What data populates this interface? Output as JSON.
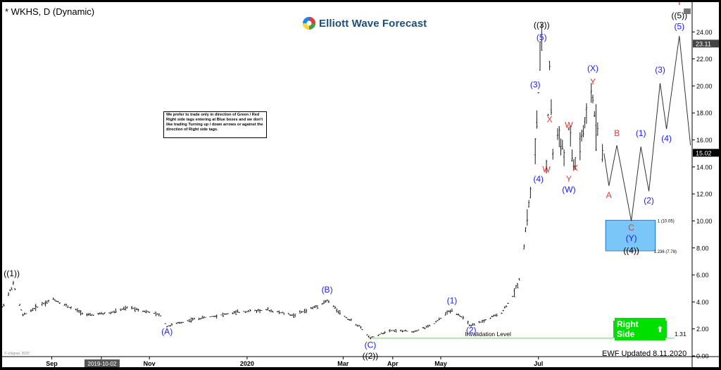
{
  "header": {
    "title": "* WKHS, D (Dynamic)"
  },
  "logo": {
    "text": "Elliott Wave Forecast",
    "colors": [
      "#e53935",
      "#1e88e5",
      "#43a047",
      "#fdd835"
    ]
  },
  "note": {
    "text": "We prefer to trade only in direction of Green / Red Right side tags entering at Blue boxes and we don't like trading Turning up / down arrows or against the direction of Right side tags."
  },
  "right_side": {
    "label": "Right Side",
    "icon": "up-arrow-icon",
    "color": "#00e000"
  },
  "footer": {
    "updated": "EWF Updated 8.11.2020",
    "copyright": "© eSignal, 2020"
  },
  "chart_data": {
    "type": "ohlc-bar",
    "symbol": "WKHS",
    "interval": "D",
    "ylim": [
      0,
      26
    ],
    "y_ticks": [
      "0.00",
      "2.00",
      "4.00",
      "6.00",
      "8.00",
      "10.00",
      "12.00",
      "14.00",
      "16.00",
      "18.00",
      "20.00",
      "22.00",
      "24.00"
    ],
    "x_labels": [
      {
        "label": "Sep",
        "date": "2019-09-01"
      },
      {
        "label": "2019-10-02",
        "date": "2019-10-02",
        "highlight": true
      },
      {
        "label": "Nov",
        "date": "2019-11-01"
      },
      {
        "label": "2020",
        "date": "2020-01-01"
      },
      {
        "label": "Mar",
        "date": "2020-03-01"
      },
      {
        "label": "Apr",
        "date": "2020-04-01"
      },
      {
        "label": "May",
        "date": "2020-05-01"
      },
      {
        "label": "Jul",
        "date": "2020-07-01"
      }
    ],
    "x_domain": [
      "2019-08-01",
      "2020-10-05"
    ],
    "price_path": [
      [
        "2019-08-01",
        3.6
      ],
      [
        "2019-08-08",
        5.3
      ],
      [
        "2019-08-14",
        3.0
      ],
      [
        "2019-08-25",
        3.8
      ],
      [
        "2019-09-02",
        4.2
      ],
      [
        "2019-09-12",
        3.6
      ],
      [
        "2019-09-24",
        3.0
      ],
      [
        "2019-10-08",
        3.2
      ],
      [
        "2019-10-20",
        3.6
      ],
      [
        "2019-11-08",
        3.0
      ],
      [
        "2019-11-12",
        2.2
      ],
      [
        "2019-11-28",
        2.7
      ],
      [
        "2019-12-14",
        3.0
      ],
      [
        "2019-12-30",
        3.3
      ],
      [
        "2020-01-14",
        3.4
      ],
      [
        "2020-01-30",
        3.0
      ],
      [
        "2020-02-12",
        3.6
      ],
      [
        "2020-02-20",
        4.1
      ],
      [
        "2020-03-01",
        3.0
      ],
      [
        "2020-03-11",
        2.2
      ],
      [
        "2020-03-18",
        1.31
      ],
      [
        "2020-03-30",
        1.9
      ],
      [
        "2020-04-14",
        1.8
      ],
      [
        "2020-04-26",
        2.3
      ],
      [
        "2020-05-05",
        3.2
      ],
      [
        "2020-05-08",
        3.4
      ],
      [
        "2020-05-15",
        2.8
      ],
      [
        "2020-05-20",
        2.2
      ],
      [
        "2020-05-28",
        2.6
      ],
      [
        "2020-06-08",
        3.2
      ],
      [
        "2020-06-15",
        4.4
      ],
      [
        "2020-06-20",
        6.0
      ],
      [
        "2020-06-24",
        10.4
      ],
      [
        "2020-06-26",
        12.0
      ],
      [
        "2020-06-29",
        15.2
      ],
      [
        "2020-07-01",
        19.5
      ],
      [
        "2020-07-03",
        23.2
      ],
      [
        "2020-07-06",
        14.2
      ],
      [
        "2020-07-08",
        21.5
      ],
      [
        "2020-07-10",
        15.0
      ],
      [
        "2020-07-14",
        16.5
      ],
      [
        "2020-07-17",
        14.8
      ],
      [
        "2020-07-20",
        16.8
      ],
      [
        "2020-07-23",
        13.9
      ],
      [
        "2020-07-27",
        15.6
      ],
      [
        "2020-07-31",
        17.4
      ],
      [
        "2020-08-03",
        19.6
      ],
      [
        "2020-08-06",
        17.2
      ],
      [
        "2020-08-10",
        15.6
      ]
    ],
    "projection": [
      [
        "2020-08-11",
        15.0
      ],
      [
        "2020-08-14",
        12.6
      ],
      [
        "2020-08-19",
        15.6
      ],
      [
        "2020-08-28",
        10.0
      ],
      [
        "2020-09-03",
        15.5
      ],
      [
        "2020-09-08",
        12.2
      ],
      [
        "2020-09-15",
        20.2
      ],
      [
        "2020-09-19",
        16.8
      ],
      [
        "2020-09-27",
        23.7
      ],
      [
        "2020-10-04",
        15.6
      ]
    ],
    "current_price": {
      "value": 15.02,
      "label": "15.02"
    },
    "max_marker": {
      "value": 23.11,
      "label": "23.11"
    },
    "blue_box": {
      "date_range": [
        "2020-08-12",
        "2020-09-12"
      ],
      "price_range": [
        7.78,
        10.05
      ],
      "upper_label": "1 (10.05)",
      "lower_label": "1.236 (7.78)",
      "color": "#4fb3f6"
    },
    "invalidation": {
      "value": 1.31,
      "label": "Invalidation Level",
      "value_label": "1.31",
      "color": "#55dd55"
    },
    "wave_labels": [
      {
        "text": "((1))",
        "date": "2019-08-07",
        "y": 5.9,
        "color": "#000000"
      },
      {
        "text": "(A)",
        "date": "2019-11-12",
        "y": 1.6,
        "color": "#1a1aff"
      },
      {
        "text": "(B)",
        "date": "2020-02-20",
        "y": 4.7,
        "color": "#1a1aff"
      },
      {
        "text": "(C)",
        "date": "2020-03-18",
        "y": 0.6,
        "color": "#1a1aff"
      },
      {
        "text": "((2))",
        "date": "2020-03-18",
        "y": -0.2,
        "color": "#000000"
      },
      {
        "text": "(1)",
        "date": "2020-05-08",
        "y": 3.9,
        "color": "#1a1aff"
      },
      {
        "text": "(2)",
        "date": "2020-05-20",
        "y": 1.7,
        "color": "#1a1aff"
      },
      {
        "text": "(3)",
        "date": "2020-06-29",
        "y": 19.9,
        "color": "#1a1aff"
      },
      {
        "text": "((3))",
        "date": "2020-07-03",
        "y": 24.3,
        "color": "#000000"
      },
      {
        "text": "(5)",
        "date": "2020-07-03",
        "y": 23.4,
        "color": "#1a1aff"
      },
      {
        "text": "(4)",
        "date": "2020-07-01",
        "y": 12.9,
        "color": "#1a1aff"
      },
      {
        "text": "W",
        "date": "2020-07-06",
        "y": 13.6,
        "color": "#e53935"
      },
      {
        "text": "X",
        "date": "2020-07-08",
        "y": 17.3,
        "color": "#e53935"
      },
      {
        "text": "W",
        "date": "2020-07-20",
        "y": 16.9,
        "color": "#e53935"
      },
      {
        "text": "Y",
        "date": "2020-07-20",
        "y": 12.9,
        "color": "#e53935"
      },
      {
        "text": "(W)",
        "date": "2020-07-20",
        "y": 12.1,
        "color": "#1a1aff"
      },
      {
        "text": "X",
        "date": "2020-07-24",
        "y": 13.7,
        "color": "#e53935"
      },
      {
        "text": "(X)",
        "date": "2020-08-04",
        "y": 21.1,
        "color": "#1a1aff"
      },
      {
        "text": "Y",
        "date": "2020-08-04",
        "y": 20.1,
        "color": "#e53935"
      },
      {
        "text": "A",
        "date": "2020-08-14",
        "y": 11.7,
        "color": "#e53935"
      },
      {
        "text": "B",
        "date": "2020-08-19",
        "y": 16.3,
        "color": "#e53935"
      },
      {
        "text": "C",
        "date": "2020-08-28",
        "y": 9.3,
        "color": "#e53935"
      },
      {
        "text": "(Y)",
        "date": "2020-08-28",
        "y": 8.5,
        "color": "#1a1aff"
      },
      {
        "text": "((4))",
        "date": "2020-08-28",
        "y": 7.6,
        "color": "#000000"
      },
      {
        "text": "(1)",
        "date": "2020-09-03",
        "y": 16.3,
        "color": "#1a1aff"
      },
      {
        "text": "(2)",
        "date": "2020-09-08",
        "y": 11.3,
        "color": "#1a1aff"
      },
      {
        "text": "(3)",
        "date": "2020-09-15",
        "y": 21.0,
        "color": "#1a1aff"
      },
      {
        "text": "(4)",
        "date": "2020-09-19",
        "y": 15.9,
        "color": "#1a1aff"
      },
      {
        "text": "((5))",
        "date": "2020-09-27",
        "y": 25.0,
        "color": "#000000"
      },
      {
        "text": "(5)",
        "date": "2020-09-27",
        "y": 24.2,
        "color": "#1a1aff"
      },
      {
        "text": "I",
        "date": "2020-09-27",
        "y": 26.0,
        "color": "#e53935"
      }
    ]
  }
}
